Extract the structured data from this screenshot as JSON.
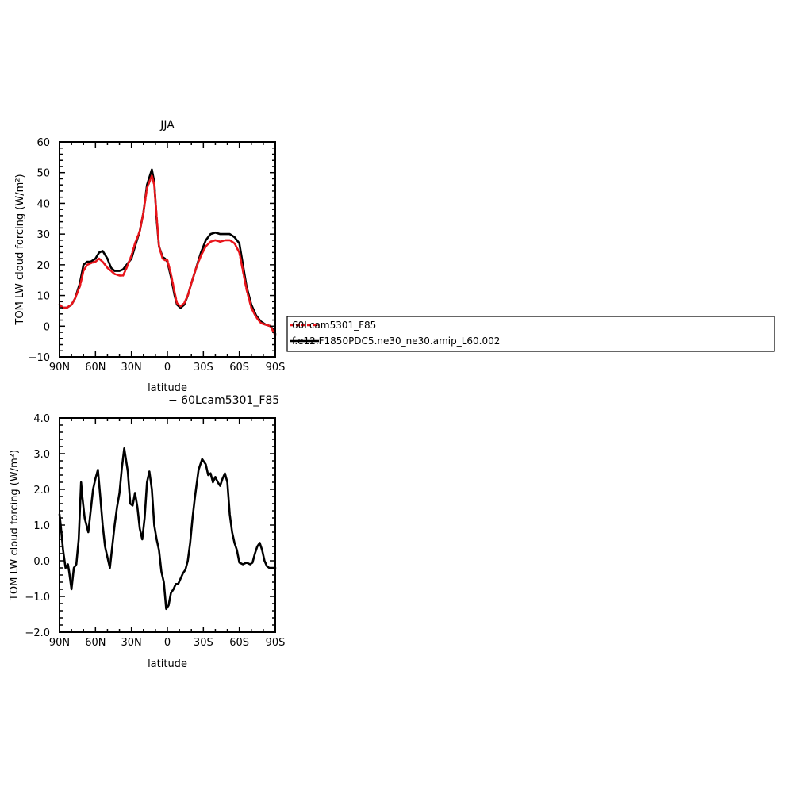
{
  "colors": {
    "exp": "#e8141a",
    "ctl": "#000000"
  },
  "legend": {
    "entries": [
      "60Lcam5301_F85",
      "f.e12.F1850PDC5.ne30_ne30.amip_L60.002"
    ]
  },
  "chart_data": [
    {
      "type": "line",
      "title": "JJA",
      "xlabel": "latitude",
      "ylabel": "TOM LW cloud forcing (W/m²)",
      "xlim": [
        90,
        -90
      ],
      "ylim": [
        -10,
        60
      ],
      "xticks": [
        90,
        60,
        30,
        0,
        -30,
        -60,
        -90
      ],
      "xticklabels": [
        "90N",
        "60N",
        "30N",
        "0",
        "30S",
        "60S",
        "90S"
      ],
      "yticks": [
        -10,
        0,
        10,
        20,
        30,
        40,
        50,
        60
      ],
      "yticklabels": [
        "−10",
        "0",
        "10",
        "20",
        "30",
        "40",
        "50",
        "60"
      ],
      "series": [
        {
          "name": "60Lcam5301_F85",
          "color": "#e8141a",
          "dashed": true,
          "x": [
            90,
            87,
            84,
            80,
            77,
            73,
            70,
            67,
            64,
            60,
            57,
            54,
            50,
            47,
            44,
            40,
            37,
            34,
            30,
            27,
            23,
            20,
            17,
            13,
            11,
            9,
            7,
            4,
            2,
            0,
            -3,
            -6,
            -8,
            -11,
            -14,
            -17,
            -20,
            -24,
            -28,
            -32,
            -36,
            -40,
            -44,
            -48,
            -52,
            -56,
            -60,
            -63,
            -66,
            -70,
            -74,
            -78,
            -82,
            -86,
            -88,
            -90
          ],
          "y": [
            7,
            6,
            6,
            7,
            9,
            13,
            18,
            20,
            20.5,
            21,
            22,
            21,
            19,
            18,
            17,
            16.5,
            16.5,
            19,
            23,
            27,
            31,
            37,
            45,
            49,
            46,
            36,
            26,
            22,
            21.5,
            21.5,
            17,
            11,
            7.5,
            6.5,
            7.5,
            10,
            14,
            19,
            23,
            26,
            27.5,
            28,
            27.5,
            28,
            28,
            27,
            24,
            18,
            12,
            6,
            3,
            1,
            0.5,
            0,
            -1.5,
            -3
          ]
        },
        {
          "name": "f.e12.F1850PDC5.ne30_ne30.amip_L60.002",
          "color": "#000000",
          "dashed": false,
          "x": [
            90,
            87,
            84,
            80,
            77,
            73,
            70,
            67,
            64,
            60,
            57,
            54,
            50,
            47,
            44,
            40,
            37,
            34,
            30,
            27,
            23,
            20,
            17,
            13,
            11,
            9,
            7,
            4,
            2,
            0,
            -3,
            -6,
            -8,
            -11,
            -14,
            -17,
            -20,
            -24,
            -28,
            -32,
            -36,
            -40,
            -44,
            -48,
            -52,
            -56,
            -60,
            -63,
            -66,
            -70,
            -74,
            -78,
            -82,
            -86,
            -88,
            -90
          ],
          "y": [
            7,
            6,
            6,
            7,
            9,
            14,
            20,
            21,
            21,
            22,
            24,
            24.5,
            22,
            19,
            18,
            18,
            18.5,
            20,
            22,
            26,
            31,
            37,
            46,
            51,
            47,
            35,
            26,
            22.5,
            22,
            21,
            16,
            10,
            7,
            6,
            7,
            10,
            14,
            19,
            24,
            28,
            30,
            30.5,
            30,
            30,
            30,
            29,
            27,
            20,
            13,
            7,
            3.5,
            1.5,
            0.5,
            0,
            -1,
            -2.5
          ]
        }
      ]
    },
    {
      "type": "line",
      "title": "− 60Lcam5301_F85",
      "xlabel": "latitude",
      "ylabel": "TOM LW cloud forcing (W/m²)",
      "xlim": [
        90,
        -90
      ],
      "ylim": [
        -2.0,
        4.0
      ],
      "xticks": [
        90,
        60,
        30,
        0,
        -30,
        -60,
        -90
      ],
      "xticklabels": [
        "90N",
        "60N",
        "30N",
        "0",
        "30S",
        "60S",
        "90S"
      ],
      "yticks": [
        -2,
        -1,
        0,
        1,
        2,
        3,
        4
      ],
      "yticklabels": [
        "−2.0",
        "−1.0",
        "0.0",
        "1.0",
        "2.0",
        "3.0",
        "4.0"
      ],
      "series": [
        {
          "name": "",
          "color": "#000000",
          "dashed": false,
          "x": [
            90,
            89,
            87,
            85,
            83,
            82,
            80,
            78,
            76,
            74,
            72,
            71,
            69,
            66,
            64,
            62,
            60,
            58,
            56,
            54,
            52,
            50,
            48,
            46,
            44,
            42,
            40,
            38,
            36,
            33,
            31,
            29,
            27,
            25,
            23,
            21,
            19,
            17,
            15,
            13,
            11,
            9,
            7,
            5,
            3,
            1,
            -1,
            -3,
            -5,
            -7,
            -9,
            -11,
            -13,
            -15,
            -17,
            -19,
            -21,
            -23,
            -26,
            -29,
            -32,
            -34,
            -36,
            -38,
            -40,
            -42,
            -44,
            -46,
            -48,
            -50,
            -52,
            -54,
            -56,
            -58,
            -60,
            -63,
            -66,
            -69,
            -71,
            -73,
            -75,
            -77,
            -79,
            -81,
            -83,
            -85,
            -87,
            -89,
            -90
          ],
          "y": [
            1.3,
            1.0,
            0.3,
            -0.2,
            -0.1,
            -0.3,
            -0.8,
            -0.2,
            -0.1,
            0.6,
            2.2,
            1.8,
            1.2,
            0.8,
            1.4,
            2.0,
            2.3,
            2.55,
            1.8,
            1.0,
            0.4,
            0.1,
            -0.2,
            0.4,
            1.0,
            1.5,
            1.9,
            2.6,
            3.15,
            2.5,
            1.6,
            1.55,
            1.9,
            1.5,
            0.9,
            0.6,
            1.2,
            2.2,
            2.5,
            2.0,
            1.0,
            0.6,
            0.3,
            -0.3,
            -0.6,
            -1.35,
            -1.25,
            -0.9,
            -0.8,
            -0.65,
            -0.65,
            -0.5,
            -0.35,
            -0.25,
            0.0,
            0.5,
            1.2,
            1.8,
            2.55,
            2.85,
            2.7,
            2.4,
            2.45,
            2.2,
            2.35,
            2.2,
            2.1,
            2.3,
            2.45,
            2.2,
            1.3,
            0.8,
            0.5,
            0.3,
            -0.05,
            -0.1,
            -0.05,
            -0.1,
            -0.05,
            0.2,
            0.4,
            0.5,
            0.3,
            0.0,
            -0.15,
            -0.2,
            -0.2,
            -0.2,
            -0.2
          ]
        }
      ]
    }
  ]
}
